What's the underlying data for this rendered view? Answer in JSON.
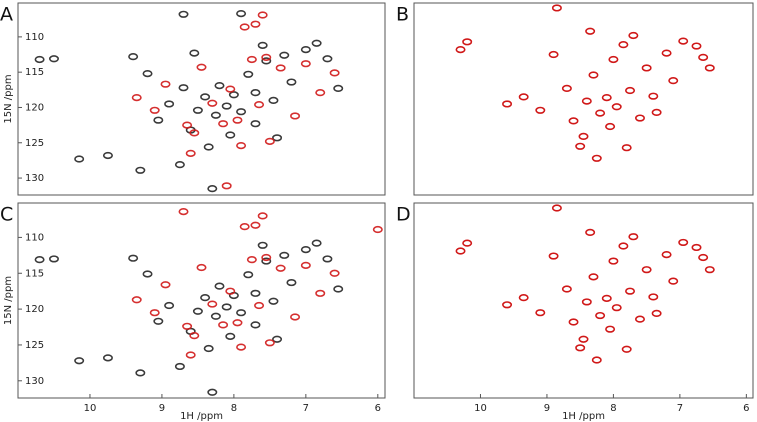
{
  "chart_data": [
    {
      "type": "scatter",
      "label": "A",
      "ylabel": "15N /ppm",
      "xlim": [
        11.0,
        5.9
      ],
      "ylim": [
        105.2,
        132.4
      ],
      "yticks": [
        110,
        115,
        120,
        125,
        130
      ],
      "series": [
        {
          "color": "#3a3a3a",
          "x": [
            10.7,
            10.5,
            10.15,
            9.75,
            9.3,
            9.4,
            9.2,
            9.05,
            8.9,
            8.75,
            8.7,
            8.6,
            8.5,
            8.4,
            8.35,
            8.25,
            8.2,
            8.1,
            8.05,
            8.0,
            8.3,
            7.9,
            7.8,
            7.7,
            7.6,
            7.55,
            7.45,
            7.3,
            7.2,
            7.0,
            6.85,
            6.7,
            6.55,
            7.7,
            7.4,
            8.7,
            8.55,
            7.9
          ],
          "y": [
            113.2,
            113.1,
            127.3,
            126.8,
            128.9,
            112.8,
            115.2,
            121.8,
            119.5,
            128.1,
            106.8,
            123.2,
            120.4,
            118.5,
            125.6,
            121.1,
            116.9,
            119.8,
            123.9,
            118.2,
            131.5,
            120.6,
            115.3,
            117.9,
            111.2,
            113.4,
            119.0,
            112.6,
            116.4,
            111.8,
            110.9,
            113.1,
            117.3,
            122.3,
            124.3,
            117.2,
            112.3,
            106.7
          ]
        },
        {
          "color": "#d01818",
          "x": [
            9.35,
            9.1,
            8.95,
            8.65,
            8.55,
            8.45,
            8.3,
            8.15,
            8.05,
            7.95,
            7.85,
            7.75,
            7.65,
            7.55,
            7.5,
            7.35,
            7.15,
            7.0,
            6.8,
            6.6,
            8.1,
            7.7,
            8.6,
            7.6,
            7.9
          ],
          "y": [
            118.6,
            120.4,
            116.7,
            122.5,
            123.6,
            114.3,
            119.4,
            122.3,
            117.4,
            121.8,
            108.6,
            113.2,
            119.6,
            112.9,
            124.8,
            114.4,
            121.2,
            113.8,
            117.9,
            115.1,
            131.1,
            108.2,
            126.5,
            106.9,
            125.4
          ]
        }
      ]
    },
    {
      "type": "scatter",
      "label": "B",
      "xlim": [
        11.0,
        5.9
      ],
      "ylim": [
        105.2,
        132.4
      ],
      "series": [
        {
          "color": "#d01818",
          "x": [
            10.3,
            10.2,
            9.6,
            9.35,
            9.1,
            8.85,
            8.9,
            8.7,
            8.6,
            8.45,
            8.4,
            8.35,
            8.3,
            8.2,
            8.1,
            8.05,
            8.0,
            7.95,
            7.85,
            7.75,
            7.7,
            7.6,
            7.5,
            7.4,
            7.35,
            7.2,
            7.1,
            6.95,
            6.75,
            6.65,
            6.55,
            7.8,
            8.25,
            8.5
          ],
          "y": [
            111.8,
            110.7,
            119.5,
            118.5,
            120.4,
            105.9,
            112.5,
            117.3,
            121.9,
            124.1,
            119.1,
            109.2,
            115.4,
            120.8,
            118.6,
            122.7,
            113.2,
            119.9,
            111.1,
            117.6,
            109.8,
            121.5,
            114.4,
            118.4,
            120.7,
            112.3,
            116.2,
            110.6,
            111.3,
            112.9,
            114.4,
            125.7,
            127.2,
            125.5
          ]
        }
      ]
    },
    {
      "type": "scatter",
      "label": "C",
      "ylabel": "15N /ppm",
      "xlabel": "1H /ppm",
      "xlim": [
        11.0,
        5.9
      ],
      "ylim": [
        105.2,
        132.4
      ],
      "yticks": [
        110,
        115,
        120,
        125,
        130
      ],
      "xticks": [
        10,
        9,
        8,
        7,
        6
      ],
      "series": [
        {
          "color": "#3a3a3a",
          "x": [
            10.7,
            10.5,
            10.15,
            9.75,
            9.3,
            9.4,
            9.2,
            9.05,
            8.9,
            8.75,
            8.6,
            8.5,
            8.4,
            8.35,
            8.25,
            8.2,
            8.1,
            8.05,
            8.0,
            8.3,
            7.9,
            7.8,
            7.7,
            7.6,
            7.55,
            7.45,
            7.3,
            7.2,
            7.0,
            6.85,
            6.7,
            6.55,
            7.7,
            7.4
          ],
          "y": [
            113.1,
            113.0,
            127.2,
            126.8,
            128.9,
            112.9,
            115.1,
            121.7,
            119.5,
            128.0,
            123.1,
            120.3,
            118.4,
            125.5,
            121.0,
            116.8,
            119.7,
            123.8,
            118.1,
            131.6,
            120.5,
            115.2,
            117.8,
            111.1,
            113.3,
            118.9,
            112.5,
            116.3,
            111.7,
            110.8,
            113.0,
            117.2,
            122.2,
            124.2
          ]
        },
        {
          "color": "#d01818",
          "x": [
            9.35,
            9.1,
            8.95,
            8.7,
            8.65,
            8.55,
            8.45,
            8.3,
            8.15,
            8.05,
            7.95,
            7.85,
            7.75,
            7.65,
            7.55,
            7.5,
            7.35,
            7.15,
            7.0,
            6.8,
            6.6,
            7.7,
            8.6,
            7.6,
            7.9,
            6.0
          ],
          "y": [
            118.7,
            120.5,
            116.6,
            106.4,
            122.4,
            123.7,
            114.2,
            119.3,
            122.2,
            117.5,
            121.9,
            108.5,
            113.1,
            119.5,
            112.8,
            124.7,
            114.3,
            121.1,
            113.9,
            117.8,
            115.0,
            108.3,
            126.4,
            107.0,
            125.3,
            108.9
          ]
        }
      ]
    },
    {
      "type": "scatter",
      "label": "D",
      "xlabel": "1H /ppm",
      "xlim": [
        11.0,
        5.9
      ],
      "ylim": [
        105.2,
        132.4
      ],
      "xticks": [
        10,
        9,
        8,
        7,
        6
      ],
      "series": [
        {
          "color": "#d01818",
          "x": [
            10.3,
            10.2,
            9.6,
            9.35,
            9.1,
            8.85,
            8.9,
            8.7,
            8.6,
            8.45,
            8.4,
            8.35,
            8.3,
            8.2,
            8.1,
            8.05,
            8.0,
            7.95,
            7.85,
            7.75,
            7.7,
            7.6,
            7.5,
            7.4,
            7.35,
            7.2,
            7.1,
            6.95,
            6.75,
            6.65,
            6.55,
            7.8,
            8.25,
            8.5
          ],
          "y": [
            111.9,
            110.8,
            119.4,
            118.4,
            120.5,
            105.9,
            112.6,
            117.2,
            121.8,
            124.2,
            119.0,
            109.3,
            115.5,
            120.9,
            118.5,
            122.8,
            113.3,
            119.8,
            111.2,
            117.5,
            109.9,
            121.4,
            114.5,
            118.3,
            120.6,
            112.4,
            116.1,
            110.7,
            111.4,
            112.8,
            114.5,
            125.6,
            127.1,
            125.4
          ]
        }
      ]
    }
  ]
}
